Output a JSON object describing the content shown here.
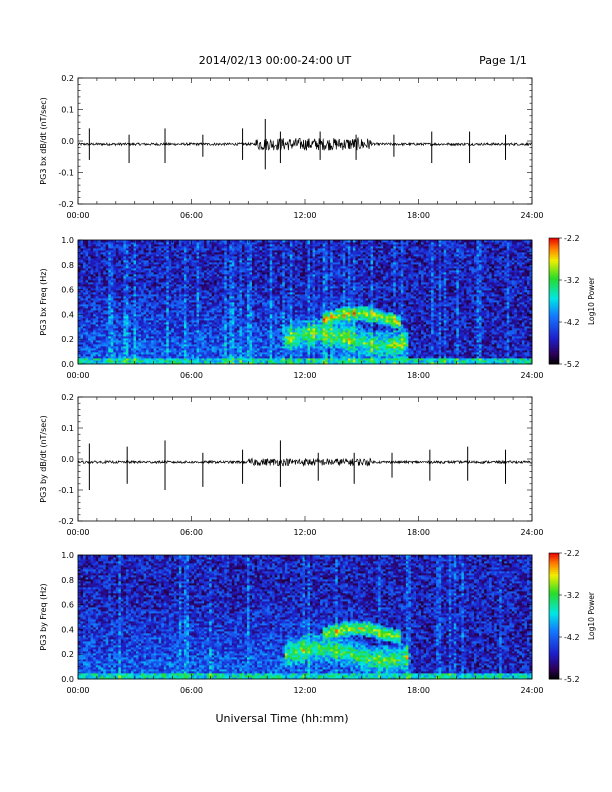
{
  "header": {
    "title": "2014/02/13  00:00-24:00 UT",
    "page": "Page 1/1"
  },
  "chart_data": [
    {
      "type": "line",
      "ylabel": "PG3 bx dB/dt (nT/sec)",
      "xlim": [
        0,
        24
      ],
      "ylim": [
        -0.2,
        0.2
      ],
      "x_ticks": [
        "00:00",
        "06:00",
        "12:00",
        "18:00",
        "24:00"
      ],
      "y_ticks": [
        "-0.2",
        "-0.1",
        "0.0",
        "0.1",
        "0.2"
      ],
      "baseline": -0.01,
      "spikes": [
        {
          "x": 0.6,
          "hi": 0.04,
          "lo": -0.06
        },
        {
          "x": 2.7,
          "hi": 0.02,
          "lo": -0.07
        },
        {
          "x": 4.6,
          "hi": 0.04,
          "lo": -0.07
        },
        {
          "x": 6.6,
          "hi": 0.02,
          "lo": -0.05
        },
        {
          "x": 8.7,
          "hi": 0.04,
          "lo": -0.06
        },
        {
          "x": 9.9,
          "hi": 0.07,
          "lo": -0.09
        },
        {
          "x": 10.7,
          "hi": 0.03,
          "lo": -0.07
        },
        {
          "x": 12.8,
          "hi": 0.03,
          "lo": -0.06
        },
        {
          "x": 14.7,
          "hi": 0.02,
          "lo": -0.06
        },
        {
          "x": 16.7,
          "hi": 0.02,
          "lo": -0.05
        },
        {
          "x": 18.7,
          "hi": 0.03,
          "lo": -0.07
        },
        {
          "x": 20.7,
          "hi": 0.03,
          "lo": -0.07
        },
        {
          "x": 22.6,
          "hi": 0.02,
          "lo": -0.06
        }
      ],
      "noise_windows": [
        {
          "from": 9.4,
          "to": 15.5,
          "amp": 0.02
        }
      ]
    },
    {
      "type": "heatmap",
      "ylabel": "PG3 bx Freq (Hz)",
      "xlim": [
        0,
        24
      ],
      "ylim": [
        0.0,
        1.0
      ],
      "x_ticks": [
        "00:00",
        "06:00",
        "12:00",
        "18:00",
        "24:00"
      ],
      "y_ticks": [
        "0.0",
        "0.2",
        "0.4",
        "0.6",
        "0.8",
        "1.0"
      ],
      "colorbar": {
        "label": "Log10 Power",
        "ticks": [
          "-2.2",
          "-3.2",
          "-4.2",
          "-5.2"
        ],
        "range": [
          -5.2,
          -2.2
        ]
      },
      "features": [
        {
          "kind": "band",
          "t0": 11.0,
          "t1": 17.5,
          "f_center": 0.2,
          "f_width": 0.12,
          "level": -3.2
        },
        {
          "kind": "band",
          "t0": 13.0,
          "t1": 17.0,
          "f_center": 0.36,
          "f_width": 0.06,
          "level": -2.9
        },
        {
          "kind": "lowfreq",
          "t0": 0,
          "t1": 24,
          "f_max": 0.05,
          "level": -3.6
        },
        {
          "kind": "background",
          "t0": 0,
          "t1": 15,
          "level": -4.2
        },
        {
          "kind": "background",
          "t0": 15,
          "t1": 24,
          "level": -4.9
        }
      ]
    },
    {
      "type": "line",
      "ylabel": "PG3 by dB/dt (nT/sec)",
      "xlim": [
        0,
        24
      ],
      "ylim": [
        -0.2,
        0.2
      ],
      "x_ticks": [
        "00:00",
        "06:00",
        "12:00",
        "18:00",
        "24:00"
      ],
      "y_ticks": [
        "-0.2",
        "-0.1",
        "0.0",
        "0.1",
        "0.2"
      ],
      "baseline": -0.01,
      "spikes": [
        {
          "x": 0.6,
          "hi": 0.05,
          "lo": -0.1
        },
        {
          "x": 2.6,
          "hi": 0.04,
          "lo": -0.08
        },
        {
          "x": 4.6,
          "hi": 0.06,
          "lo": -0.1
        },
        {
          "x": 6.6,
          "hi": 0.02,
          "lo": -0.09
        },
        {
          "x": 8.7,
          "hi": 0.03,
          "lo": -0.08
        },
        {
          "x": 10.7,
          "hi": 0.06,
          "lo": -0.09
        },
        {
          "x": 12.7,
          "hi": 0.02,
          "lo": -0.07
        },
        {
          "x": 14.6,
          "hi": 0.02,
          "lo": -0.08
        },
        {
          "x": 16.6,
          "hi": 0.02,
          "lo": -0.06
        },
        {
          "x": 18.6,
          "hi": 0.03,
          "lo": -0.07
        },
        {
          "x": 20.6,
          "hi": 0.04,
          "lo": -0.07
        },
        {
          "x": 22.6,
          "hi": 0.03,
          "lo": -0.08
        }
      ],
      "noise_windows": [
        {
          "from": 9.0,
          "to": 15.5,
          "amp": 0.012
        }
      ]
    },
    {
      "type": "heatmap",
      "ylabel": "PG3 by Freq (Hz)",
      "xlim": [
        0,
        24
      ],
      "ylim": [
        0.0,
        1.0
      ],
      "x_ticks": [
        "00:00",
        "06:00",
        "12:00",
        "18:00",
        "24:00"
      ],
      "y_ticks": [
        "0.0",
        "0.2",
        "0.4",
        "0.6",
        "0.8",
        "1.0"
      ],
      "colorbar": {
        "label": "Log10 Power",
        "ticks": [
          "-2.2",
          "-3.2",
          "-4.2",
          "-5.2"
        ],
        "range": [
          -5.2,
          -2.2
        ]
      },
      "features": [
        {
          "kind": "band",
          "t0": 11.0,
          "t1": 17.5,
          "f_center": 0.2,
          "f_width": 0.12,
          "level": -3.2
        },
        {
          "kind": "band",
          "t0": 13.0,
          "t1": 17.0,
          "f_center": 0.36,
          "f_width": 0.06,
          "level": -2.9
        },
        {
          "kind": "lowfreq",
          "t0": 0,
          "t1": 24,
          "f_max": 0.05,
          "level": -3.6
        },
        {
          "kind": "background",
          "t0": 0,
          "t1": 15,
          "level": -4.2
        },
        {
          "kind": "background",
          "t0": 15,
          "t1": 24,
          "level": -4.9
        }
      ]
    }
  ],
  "footer": {
    "xlabel": "Universal Time (hh:mm)"
  }
}
